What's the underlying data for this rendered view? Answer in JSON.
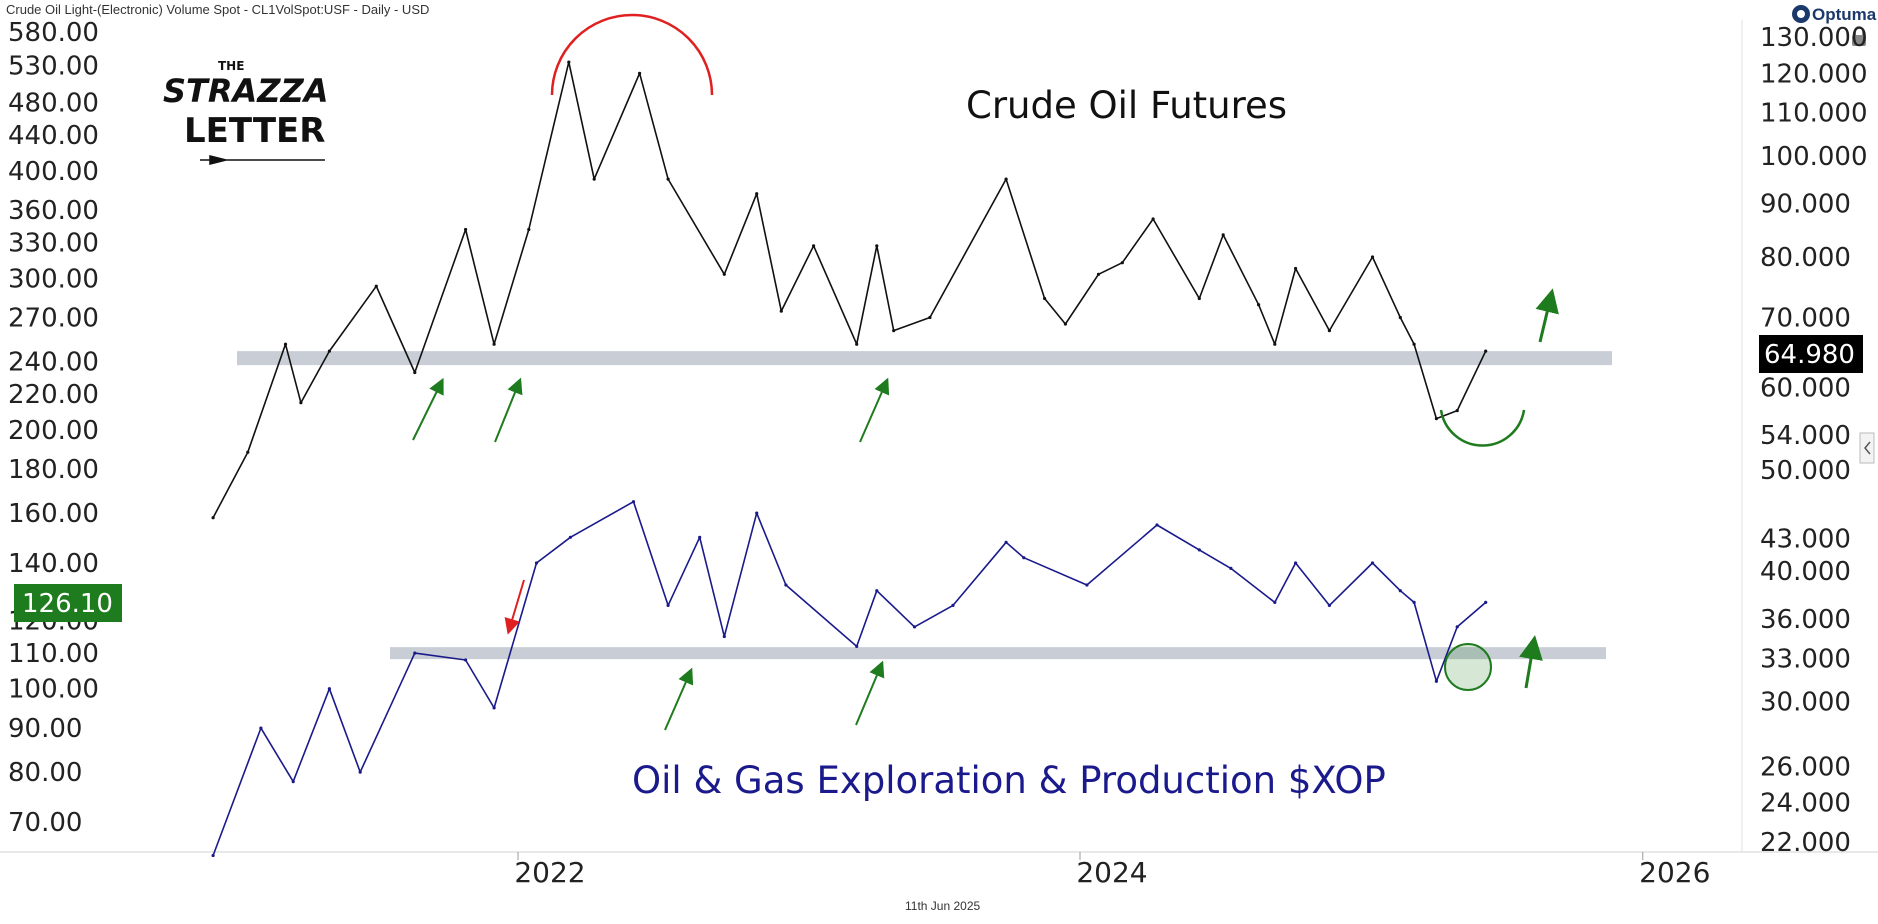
{
  "header": {
    "instrument": "Crude Oil Light-(Electronic) Volume Spot - CL1VolSpot:USF - Daily - USD",
    "brand": "Optuma",
    "footer_date": "11th Jun 2025"
  },
  "logo": {
    "line1": "THE",
    "line2": "STRAZZA",
    "line3": "LETTER"
  },
  "colors": {
    "crude_line": "#111111",
    "xop_line": "#1a1a8c",
    "support_band": "#c9ced6",
    "arrow_green": "#1e7b1e",
    "arrow_red": "#e02020",
    "arc_red": "#e02020",
    "arc_green": "#1e7b1e",
    "left_price_bg": "#1e7b1e",
    "right_price_bg": "#000000",
    "xop_text": "#1a1a8c"
  },
  "chart_data": {
    "type": "line",
    "title": "",
    "xlabel": "",
    "ylabel": "",
    "x_ticks": [
      "2022",
      "2024",
      "2026"
    ],
    "left_axis": {
      "ticks": [
        "580.00",
        "530.00",
        "480.00",
        "440.00",
        "400.00",
        "360.00",
        "330.00",
        "300.00",
        "270.00",
        "240.00",
        "220.00",
        "200.00",
        "180.00",
        "160.00",
        "140.00",
        "120.00",
        "110.00",
        "100.00",
        "90.00",
        "80.00",
        "70.00"
      ],
      "last_value": "126.10",
      "scale": "log"
    },
    "right_axis": {
      "ticks": [
        "130.000",
        "120.000",
        "110.000",
        "100.000",
        "90.000",
        "80.000",
        "70.000",
        "60.000",
        "54.000",
        "50.000",
        "43.000",
        "40.000",
        "36.000",
        "33.000",
        "30.000",
        "26.000",
        "24.000",
        "22.000"
      ],
      "last_value": "64.980",
      "scale": "log"
    },
    "series": [
      {
        "name": "Crude Oil Futures",
        "axis": "right",
        "x": [
          "2020-12-01",
          "2021-01-15",
          "2021-03-05",
          "2021-03-25",
          "2021-05-01",
          "2021-07-01",
          "2021-08-20",
          "2021-10-25",
          "2021-12-01",
          "2022-01-15",
          "2022-03-08",
          "2022-04-10",
          "2022-06-08",
          "2022-07-15",
          "2022-09-26",
          "2022-11-07",
          "2022-12-09",
          "2023-01-20",
          "2023-03-17",
          "2023-04-12",
          "2023-05-04",
          "2023-06-20",
          "2023-09-27",
          "2023-11-16",
          "2023-12-13",
          "2024-01-25",
          "2024-02-25",
          "2024-04-05",
          "2024-06-04",
          "2024-07-05",
          "2024-08-20",
          "2024-09-10",
          "2024-10-07",
          "2024-11-20",
          "2025-01-15",
          "2025-02-20",
          "2025-03-10",
          "2025-04-08",
          "2025-05-05",
          "2025-06-11"
        ],
        "values": [
          45,
          52,
          66,
          58,
          65,
          75,
          62,
          85,
          66,
          85,
          123,
          95,
          120,
          95,
          77,
          92,
          71,
          82,
          66,
          82,
          68,
          70,
          95,
          73,
          69,
          77,
          79,
          87,
          73,
          84,
          72,
          66,
          78,
          68,
          80,
          70,
          66,
          56,
          57,
          65
        ]
      },
      {
        "name": "Oil & Gas Exploration & Production $XOP",
        "axis": "left",
        "x": [
          "2020-12-01",
          "2021-02-01",
          "2021-03-15",
          "2021-05-01",
          "2021-06-10",
          "2021-08-20",
          "2021-10-25",
          "2021-12-01",
          "2022-01-25",
          "2022-03-10",
          "2022-05-31",
          "2022-07-15",
          "2022-08-25",
          "2022-09-26",
          "2022-11-07",
          "2022-12-15",
          "2023-03-17",
          "2023-04-12",
          "2023-05-31",
          "2023-07-20",
          "2023-09-27",
          "2023-10-20",
          "2024-01-10",
          "2024-04-10",
          "2024-06-04",
          "2024-07-15",
          "2024-09-10",
          "2024-10-07",
          "2024-11-20",
          "2025-01-15",
          "2025-02-20",
          "2025-03-10",
          "2025-04-08",
          "2025-05-05",
          "2025-06-11"
        ],
        "values": [
          64,
          90,
          78,
          100,
          80,
          110,
          108,
          95,
          140,
          150,
          165,
          125,
          150,
          115,
          160,
          132,
          112,
          130,
          118,
          125,
          148,
          142,
          132,
          155,
          145,
          138,
          126,
          140,
          125,
          140,
          130,
          126,
          102,
          118,
          126
        ]
      }
    ],
    "annotations": {
      "crude_label": "Crude Oil Futures",
      "xop_label": "Oil & Gas Exploration & Production $XOP"
    },
    "support_levels": [
      {
        "series": "Crude Oil Futures",
        "value": 64
      },
      {
        "series": "Oil & Gas Exploration & Production $XOP",
        "value": 110
      }
    ],
    "grid": false,
    "legend": "none"
  }
}
